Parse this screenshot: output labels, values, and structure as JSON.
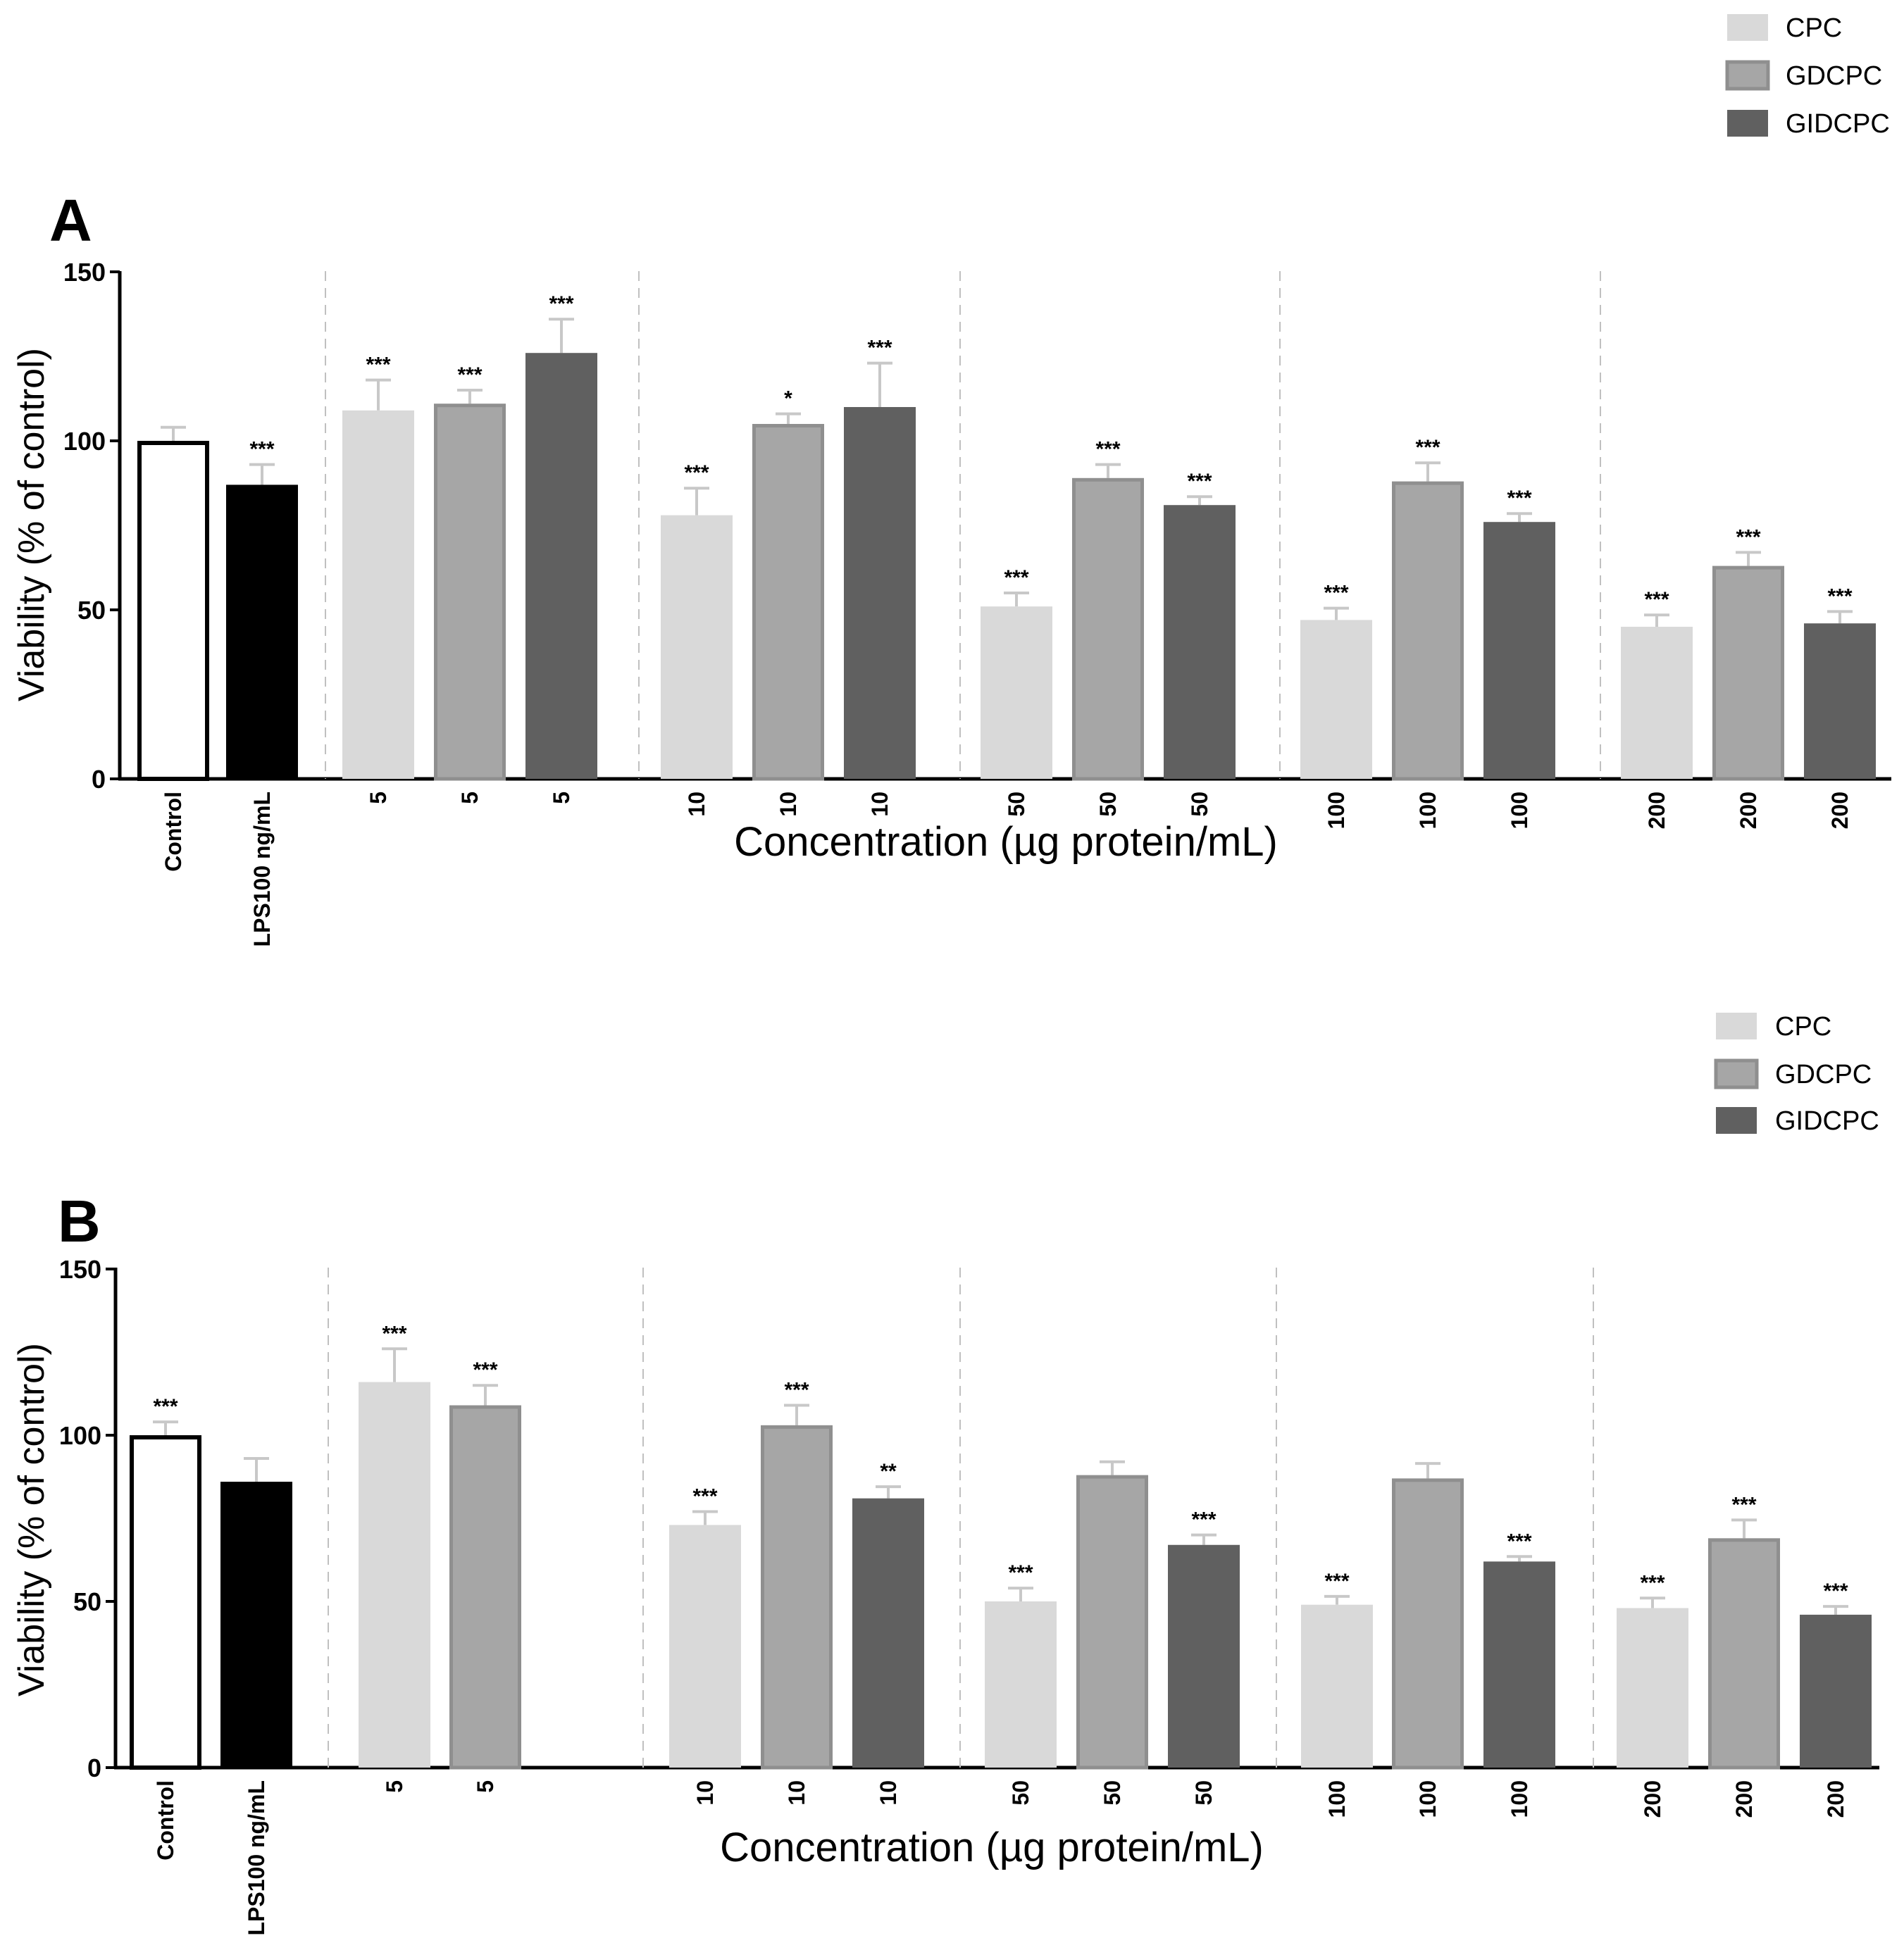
{
  "colors": {
    "control": "#ffffff",
    "lps": "#000000",
    "CPC": "#d9d9d9",
    "GDCPC": "#a6a6a6",
    "GIDCPC": "#606060",
    "GDCPC_edge": "#8f8f8f",
    "axis": "#000000",
    "error": "#c8c8c8"
  },
  "chart_data": [
    {
      "panel": "A",
      "type": "bar",
      "ylabel": "Viability (% of control)",
      "xlabel": "Concentration (µg protein/mL)",
      "ylim": [
        0,
        150
      ],
      "yticks": [
        "0",
        "50",
        "100",
        "150"
      ],
      "legend": {
        "position": "top-right",
        "entries": [
          "CPC",
          "GDCPC",
          "GIDCPC"
        ]
      },
      "bars": [
        {
          "label": "Control",
          "group": "Control",
          "value": 100,
          "error": 4,
          "sig": ""
        },
        {
          "label": "LPS100 ng/mL",
          "group": "LPS",
          "value": 87,
          "error": 6,
          "sig": "***"
        },
        {
          "label": "5",
          "group": "CPC",
          "value": 109,
          "error": 9,
          "sig": "***"
        },
        {
          "label": "5",
          "group": "GDCPC",
          "value": 111,
          "error": 4,
          "sig": "***"
        },
        {
          "label": "5",
          "group": "GIDCPC",
          "value": 126,
          "error": 10,
          "sig": "***"
        },
        {
          "label": "10",
          "group": "CPC",
          "value": 78,
          "error": 8,
          "sig": "***"
        },
        {
          "label": "10",
          "group": "GDCPC",
          "value": 105,
          "error": 3,
          "sig": "*"
        },
        {
          "label": "10",
          "group": "GIDCPC",
          "value": 110,
          "error": 13,
          "sig": "***"
        },
        {
          "label": "50",
          "group": "CPC",
          "value": 51,
          "error": 4,
          "sig": "***"
        },
        {
          "label": "50",
          "group": "GDCPC",
          "value": 89,
          "error": 4,
          "sig": "***"
        },
        {
          "label": "50",
          "group": "GIDCPC",
          "value": 81,
          "error": 2.5,
          "sig": "***"
        },
        {
          "label": "100",
          "group": "CPC",
          "value": 47,
          "error": 3.5,
          "sig": "***"
        },
        {
          "label": "100",
          "group": "GDCPC",
          "value": 88,
          "error": 5.5,
          "sig": "***"
        },
        {
          "label": "100",
          "group": "GIDCPC",
          "value": 76,
          "error": 2.5,
          "sig": "***"
        },
        {
          "label": "200",
          "group": "CPC",
          "value": 45,
          "error": 3.5,
          "sig": "***"
        },
        {
          "label": "200",
          "group": "GDCPC",
          "value": 63,
          "error": 4,
          "sig": "***"
        },
        {
          "label": "200",
          "group": "GIDCPC",
          "value": 46,
          "error": 3.5,
          "sig": "***"
        }
      ]
    },
    {
      "panel": "B",
      "type": "bar",
      "ylabel": "Viability (% of control)",
      "xlabel": "Concentration (µg protein/mL)",
      "ylim": [
        0,
        150
      ],
      "yticks": [
        "0",
        "50",
        "100",
        "150"
      ],
      "legend": {
        "position": "top-right",
        "entries": [
          "CPC",
          "GDCPC",
          "GIDCPC"
        ]
      },
      "bars": [
        {
          "label": "Control",
          "group": "Control",
          "value": 100,
          "error": 4,
          "sig": "***"
        },
        {
          "label": "LPS100 ng/mL",
          "group": "LPS",
          "value": 86,
          "error": 7,
          "sig": ""
        },
        {
          "label": "5",
          "group": "CPC",
          "value": 116,
          "error": 10,
          "sig": "***"
        },
        {
          "label": "5",
          "group": "GDCPC",
          "value": 109,
          "error": 6,
          "sig": "***"
        },
        {
          "label": "10",
          "group": "CPC",
          "value": 73,
          "error": 4,
          "sig": "***"
        },
        {
          "label": "10",
          "group": "GDCPC",
          "value": 103,
          "error": 6,
          "sig": "***"
        },
        {
          "label": "10",
          "group": "GIDCPC",
          "value": 81,
          "error": 3.5,
          "sig": "**"
        },
        {
          "label": "50",
          "group": "CPC",
          "value": 50,
          "error": 4,
          "sig": "***"
        },
        {
          "label": "50",
          "group": "GDCPC",
          "value": 88,
          "error": 4,
          "sig": ""
        },
        {
          "label": "50",
          "group": "GIDCPC",
          "value": 67,
          "error": 3,
          "sig": "***"
        },
        {
          "label": "100",
          "group": "CPC",
          "value": 49,
          "error": 2.5,
          "sig": "***"
        },
        {
          "label": "100",
          "group": "GDCPC",
          "value": 87,
          "error": 4.5,
          "sig": ""
        },
        {
          "label": "100",
          "group": "GIDCPC",
          "value": 62,
          "error": 1.5,
          "sig": "***"
        },
        {
          "label": "200",
          "group": "CPC",
          "value": 48,
          "error": 3,
          "sig": "***"
        },
        {
          "label": "200",
          "group": "GDCPC",
          "value": 69,
          "error": 5.5,
          "sig": "***"
        },
        {
          "label": "200",
          "group": "GIDCPC",
          "value": 46,
          "error": 2.5,
          "sig": "***"
        }
      ]
    }
  ]
}
